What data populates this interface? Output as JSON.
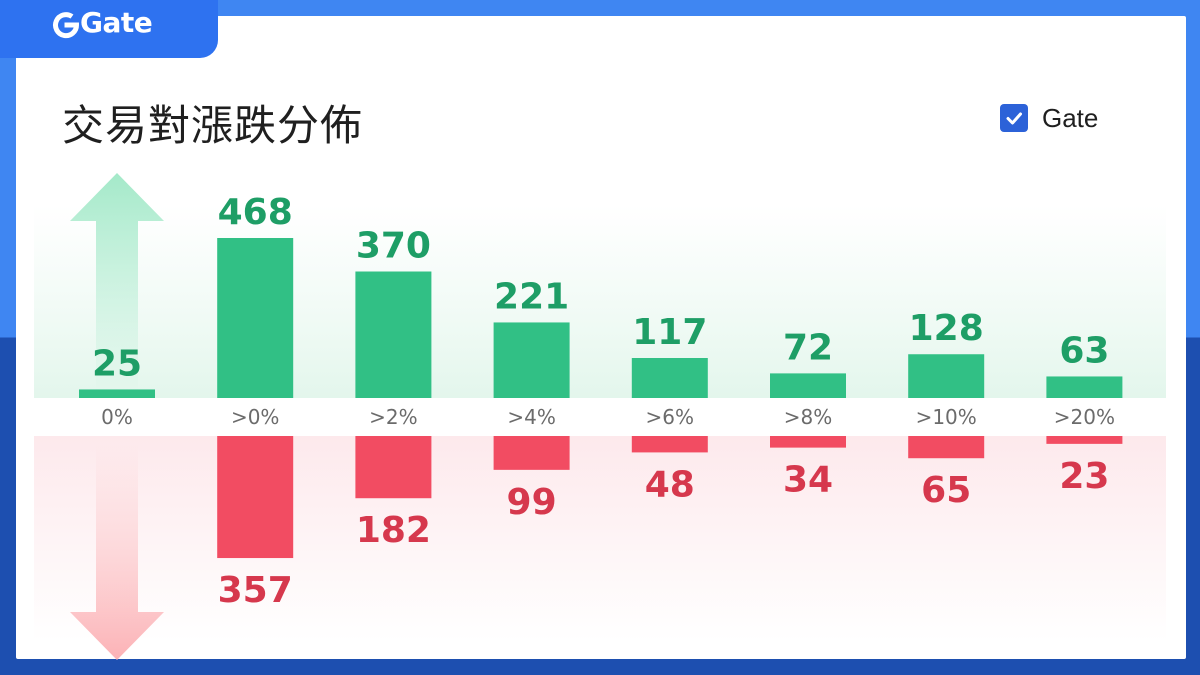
{
  "brand": {
    "name": "Gate"
  },
  "title": "交易對漲跌分佈",
  "legend": {
    "label": "Gate",
    "checked": true,
    "check_color": "#2c62d8"
  },
  "colors": {
    "up": "#31c085",
    "up_text": "#1e9e66",
    "down": "#f24c62",
    "down_text": "#d6384d",
    "brand_blue": "#2e72f0"
  },
  "chart_data": {
    "type": "bar",
    "title": "交易對漲跌分佈",
    "categories": [
      "0%",
      ">0%",
      ">2%",
      ">4%",
      ">6%",
      ">8%",
      ">10%",
      ">20%"
    ],
    "series": [
      {
        "values": [
          25,
          468,
          370,
          221,
          117,
          72,
          128,
          63
        ]
      },
      {
        "values": [
          0,
          357,
          182,
          99,
          48,
          34,
          65,
          23
        ]
      }
    ],
    "ylim": [
      0,
      500
    ],
    "legend": [
      "Gate"
    ],
    "grid": false
  }
}
